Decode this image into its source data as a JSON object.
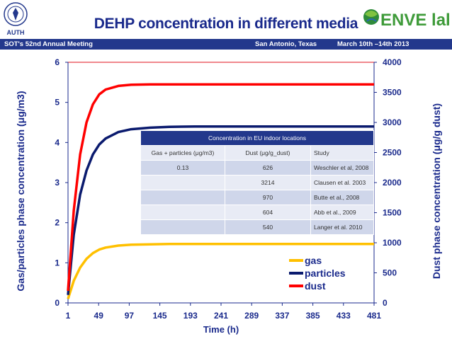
{
  "header": {
    "title": "DEHP concentration in different media",
    "meeting": "SOT's 52nd Annual Meeting",
    "location": "San Antonio, Texas",
    "date": "March 10th –14th  2013",
    "left_logo_text": "AUTH",
    "right_logo_text": "ENVE lab"
  },
  "table": {
    "title": "Concentration in EU indoor locations",
    "columns": [
      "Gas + particles (μg/m3)",
      "Dust (μg/g_dust)",
      "Study"
    ],
    "rows": [
      [
        "0.13",
        "626",
        "Weschler et al, 2008"
      ],
      [
        "",
        "3214",
        "Clausen et al. 2003"
      ],
      [
        "",
        "970",
        "Butte et al., 2008"
      ],
      [
        "",
        "604",
        "Abb et al., 2009"
      ],
      [
        "",
        "540",
        "Langer et al. 2010"
      ]
    ]
  },
  "chart_data": {
    "type": "line",
    "xlabel": "Time (h)",
    "ylabel": "Gas/particles phase concentration (μg/m3)",
    "y2label": "Dust phase concentration (μg/g dust)",
    "x_ticks": [
      1,
      49,
      97,
      145,
      193,
      241,
      289,
      337,
      385,
      433,
      481
    ],
    "xlim": [
      1,
      481
    ],
    "ylim": [
      0,
      6
    ],
    "y2lim": [
      0,
      4000
    ],
    "y_ticks": [
      0,
      1,
      2,
      3,
      4,
      5,
      6
    ],
    "y2_ticks": [
      0,
      500,
      1000,
      1500,
      2000,
      2500,
      3000,
      3500,
      4000
    ],
    "grid": false,
    "legend_position": "bottom-right",
    "series": [
      {
        "name": "gas",
        "color": "#ffc000",
        "x": [
          1,
          10,
          20,
          30,
          40,
          50,
          60,
          80,
          100,
          130,
          160,
          200,
          300,
          481
        ],
        "y": [
          0.1,
          0.55,
          0.88,
          1.1,
          1.24,
          1.33,
          1.38,
          1.43,
          1.45,
          1.46,
          1.47,
          1.47,
          1.47,
          1.47
        ]
      },
      {
        "name": "particles",
        "color": "#0a1a6e",
        "x": [
          1,
          10,
          20,
          30,
          40,
          50,
          60,
          80,
          100,
          130,
          160,
          200,
          300,
          481
        ],
        "y": [
          0.2,
          1.7,
          2.7,
          3.3,
          3.7,
          3.95,
          4.1,
          4.26,
          4.33,
          4.37,
          4.39,
          4.4,
          4.4,
          4.4
        ]
      },
      {
        "name": "dust",
        "color": "#ff0000",
        "x": [
          1,
          10,
          20,
          30,
          40,
          50,
          60,
          80,
          100,
          130,
          160,
          200,
          300,
          481
        ],
        "y": [
          0.3,
          2.3,
          3.7,
          4.5,
          4.95,
          5.2,
          5.32,
          5.41,
          5.44,
          5.45,
          5.45,
          5.45,
          5.45,
          5.45
        ]
      }
    ]
  }
}
